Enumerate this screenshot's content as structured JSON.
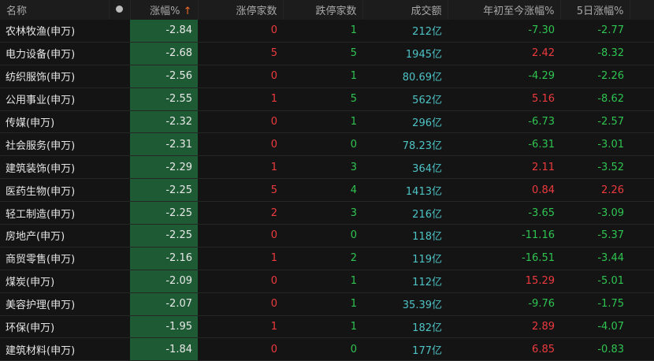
{
  "colors": {
    "up": "#ee3a3f",
    "down": "#2fc451",
    "volume": "#4ec3c6",
    "sorted_column_bg": "#1e5b34"
  },
  "headers": {
    "name": "名称",
    "dot": "dot-icon",
    "chg": "涨幅%",
    "sort_arrow": "↑",
    "limit_up": "涨停家数",
    "limit_down": "跌停家数",
    "volume": "成交额",
    "ytd": "年初至今涨幅%",
    "d5": "5日涨幅%"
  },
  "rows": [
    {
      "name": "农林牧渔(申万)",
      "chg": "-2.84",
      "up": "0",
      "down": "1",
      "vol": "212亿",
      "ytd": "-7.30",
      "d5": "-2.77"
    },
    {
      "name": "电力设备(申万)",
      "chg": "-2.68",
      "up": "5",
      "down": "5",
      "vol": "1945亿",
      "ytd": "2.42",
      "d5": "-8.32"
    },
    {
      "name": "纺织服饰(申万)",
      "chg": "-2.56",
      "up": "0",
      "down": "1",
      "vol": "80.69亿",
      "ytd": "-4.29",
      "d5": "-2.26"
    },
    {
      "name": "公用事业(申万)",
      "chg": "-2.55",
      "up": "1",
      "down": "5",
      "vol": "562亿",
      "ytd": "5.16",
      "d5": "-8.62"
    },
    {
      "name": "传媒(申万)",
      "chg": "-2.32",
      "up": "0",
      "down": "1",
      "vol": "296亿",
      "ytd": "-6.73",
      "d5": "-2.57"
    },
    {
      "name": "社会服务(申万)",
      "chg": "-2.31",
      "up": "0",
      "down": "0",
      "vol": "78.23亿",
      "ytd": "-6.31",
      "d5": "-3.01"
    },
    {
      "name": "建筑装饰(申万)",
      "chg": "-2.29",
      "up": "1",
      "down": "3",
      "vol": "364亿",
      "ytd": "2.11",
      "d5": "-3.52"
    },
    {
      "name": "医药生物(申万)",
      "chg": "-2.25",
      "up": "5",
      "down": "4",
      "vol": "1413亿",
      "ytd": "0.84",
      "d5": "2.26"
    },
    {
      "name": "轻工制造(申万)",
      "chg": "-2.25",
      "up": "2",
      "down": "3",
      "vol": "216亿",
      "ytd": "-3.65",
      "d5": "-3.09"
    },
    {
      "name": "房地产(申万)",
      "chg": "-2.25",
      "up": "0",
      "down": "0",
      "vol": "118亿",
      "ytd": "-11.16",
      "d5": "-5.37"
    },
    {
      "name": "商贸零售(申万)",
      "chg": "-2.16",
      "up": "1",
      "down": "2",
      "vol": "119亿",
      "ytd": "-16.51",
      "d5": "-3.44"
    },
    {
      "name": "煤炭(申万)",
      "chg": "-2.09",
      "up": "0",
      "down": "1",
      "vol": "112亿",
      "ytd": "15.29",
      "d5": "-5.01"
    },
    {
      "name": "美容护理(申万)",
      "chg": "-2.07",
      "up": "0",
      "down": "1",
      "vol": "35.39亿",
      "ytd": "-9.76",
      "d5": "-1.75"
    },
    {
      "name": "环保(申万)",
      "chg": "-1.95",
      "up": "1",
      "down": "1",
      "vol": "182亿",
      "ytd": "2.89",
      "d5": "-4.07"
    },
    {
      "name": "建筑材料(申万)",
      "chg": "-1.84",
      "up": "0",
      "down": "0",
      "vol": "177亿",
      "ytd": "6.85",
      "d5": "-0.83"
    }
  ]
}
